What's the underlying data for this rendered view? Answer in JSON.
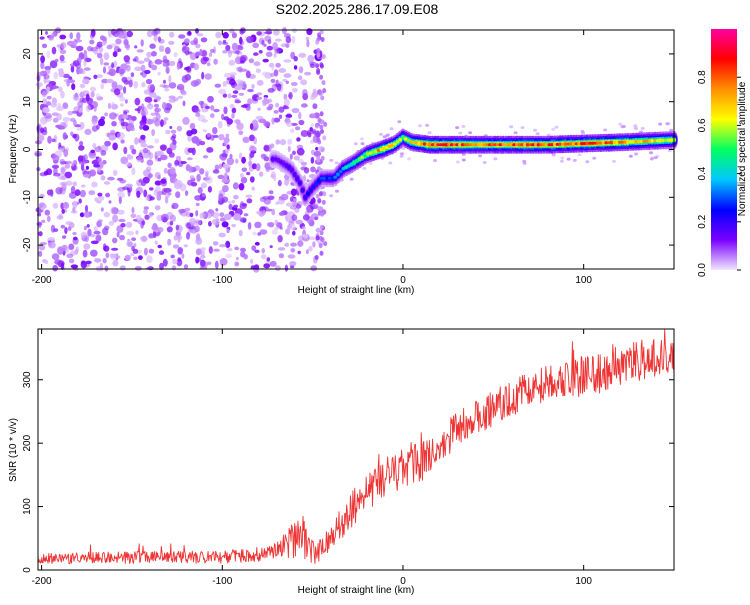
{
  "title": "S202.2025.286.17.09.E08",
  "chart_data": [
    {
      "type": "heatmap",
      "name": "spectrogram",
      "xlabel": "Height of straight line (km)",
      "ylabel": "Frequency (Hz)",
      "xlim": [
        -202,
        150
      ],
      "ylim": [
        -25,
        25
      ],
      "xticks": [
        -200,
        -100,
        0,
        100
      ],
      "yticks": [
        -20,
        -10,
        0,
        10,
        20
      ],
      "colorbar": {
        "label": "Normalized spectral amplitude",
        "range": [
          0,
          1
        ],
        "ticks": [
          0.0,
          0.2,
          0.4,
          0.6,
          0.8
        ],
        "tick_labels": [
          "0.0",
          "0.2",
          "0.4",
          "0.6",
          "0.8"
        ],
        "colors": [
          "#f2e6ff",
          "#7a00ff",
          "#0000ff",
          "#00c8ff",
          "#00ff60",
          "#ffff00",
          "#ff9000",
          "#ff0000",
          "#ff00a0"
        ]
      },
      "noise_region": {
        "x": [
          -202,
          -45
        ],
        "note": "scattered low-amplitude noise"
      },
      "ridge": [
        {
          "x": -70,
          "y": -2
        },
        {
          "x": -62,
          "y": -4
        },
        {
          "x": -57,
          "y": -7
        },
        {
          "x": -54,
          "y": -10
        },
        {
          "x": -50,
          "y": -8
        },
        {
          "x": -45,
          "y": -6
        },
        {
          "x": -38,
          "y": -6
        },
        {
          "x": -33,
          "y": -4
        },
        {
          "x": -28,
          "y": -3
        },
        {
          "x": -20,
          "y": -1
        },
        {
          "x": -12,
          "y": 0
        },
        {
          "x": -5,
          "y": 1
        },
        {
          "x": 0,
          "y": 2.5
        },
        {
          "x": 5,
          "y": 1.5
        },
        {
          "x": 15,
          "y": 1
        },
        {
          "x": 40,
          "y": 1
        },
        {
          "x": 80,
          "y": 1
        },
        {
          "x": 120,
          "y": 1.5
        },
        {
          "x": 150,
          "y": 2
        }
      ],
      "ridge_amplitude": [
        {
          "x": -70,
          "a": 0.15
        },
        {
          "x": -55,
          "a": 0.2
        },
        {
          "x": -40,
          "a": 0.3
        },
        {
          "x": -25,
          "a": 0.5
        },
        {
          "x": -10,
          "a": 0.75
        },
        {
          "x": 0,
          "a": 0.55
        },
        {
          "x": 15,
          "a": 0.85
        },
        {
          "x": 40,
          "a": 0.75
        },
        {
          "x": 70,
          "a": 0.8
        },
        {
          "x": 100,
          "a": 0.8
        },
        {
          "x": 130,
          "a": 0.7
        },
        {
          "x": 150,
          "a": 0.6
        }
      ]
    },
    {
      "type": "line",
      "name": "snr",
      "xlabel": "Height of straight line (km)",
      "ylabel": "SNR (10 * v/v)",
      "xlim": [
        -202,
        150
      ],
      "ylim": [
        0,
        380
      ],
      "xticks": [
        -200,
        -100,
        0,
        100
      ],
      "yticks": [
        0,
        100,
        200,
        300
      ],
      "color": "#ee3333",
      "series": [
        {
          "name": "SNR",
          "envelope": [
            {
              "x": -202,
              "mean": 18,
              "spread": 12
            },
            {
              "x": -150,
              "mean": 20,
              "spread": 14
            },
            {
              "x": -100,
              "mean": 20,
              "spread": 14
            },
            {
              "x": -75,
              "mean": 25,
              "spread": 15
            },
            {
              "x": -65,
              "mean": 40,
              "spread": 30
            },
            {
              "x": -55,
              "mean": 55,
              "spread": 55
            },
            {
              "x": -48,
              "mean": 25,
              "spread": 25
            },
            {
              "x": -40,
              "mean": 50,
              "spread": 30
            },
            {
              "x": -30,
              "mean": 90,
              "spread": 40
            },
            {
              "x": -20,
              "mean": 120,
              "spread": 45
            },
            {
              "x": -10,
              "mean": 145,
              "spread": 45
            },
            {
              "x": 0,
              "mean": 160,
              "spread": 45
            },
            {
              "x": 10,
              "mean": 170,
              "spread": 45
            },
            {
              "x": 20,
              "mean": 190,
              "spread": 40
            },
            {
              "x": 30,
              "mean": 225,
              "spread": 40
            },
            {
              "x": 40,
              "mean": 240,
              "spread": 40
            },
            {
              "x": 50,
              "mean": 255,
              "spread": 40
            },
            {
              "x": 60,
              "mean": 270,
              "spread": 40
            },
            {
              "x": 70,
              "mean": 285,
              "spread": 40
            },
            {
              "x": 80,
              "mean": 295,
              "spread": 40
            },
            {
              "x": 90,
              "mean": 300,
              "spread": 40
            },
            {
              "x": 100,
              "mean": 305,
              "spread": 45
            },
            {
              "x": 110,
              "mean": 310,
              "spread": 45
            },
            {
              "x": 120,
              "mean": 320,
              "spread": 45
            },
            {
              "x": 130,
              "mean": 330,
              "spread": 45
            },
            {
              "x": 140,
              "mean": 335,
              "spread": 45
            },
            {
              "x": 150,
              "mean": 340,
              "spread": 40
            }
          ]
        }
      ]
    }
  ]
}
